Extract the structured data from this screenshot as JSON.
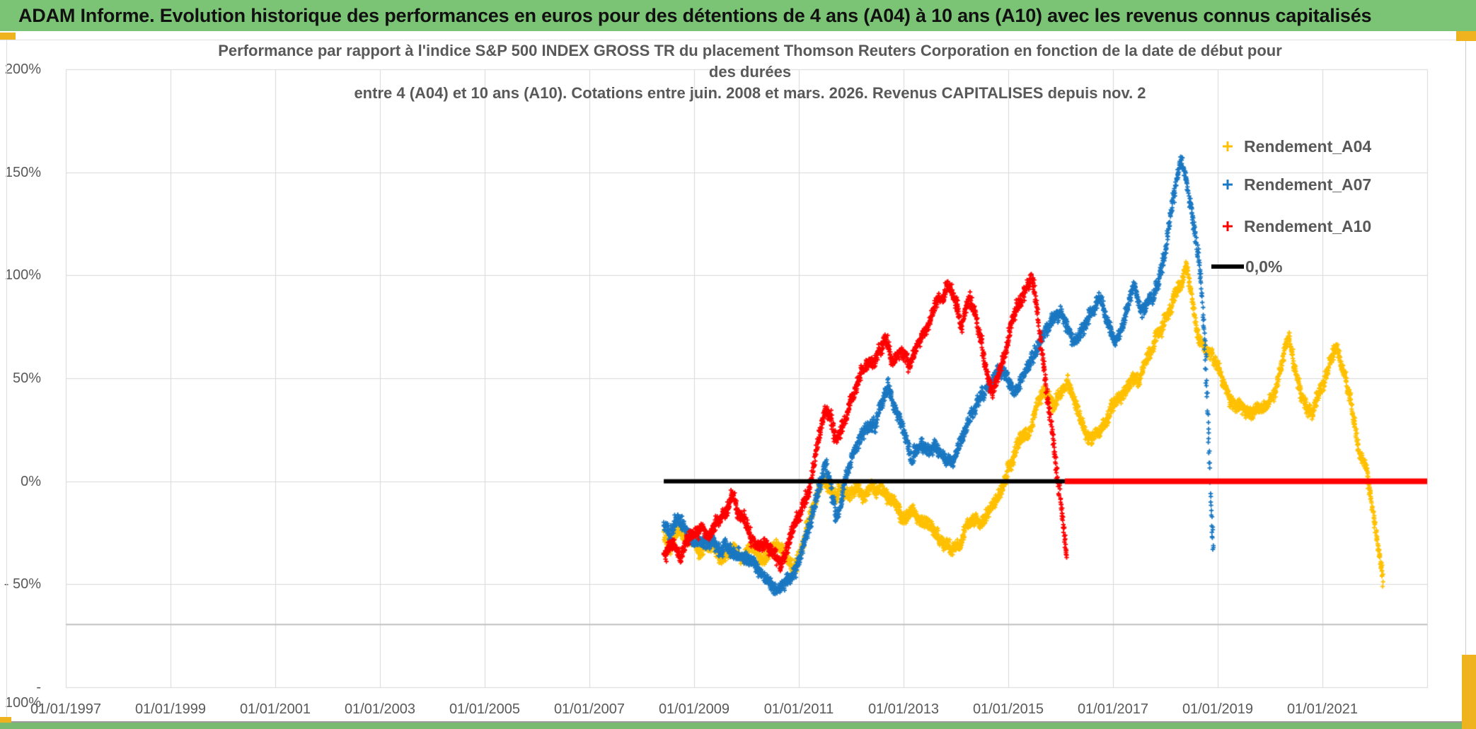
{
  "page": {
    "header_title": "ADAM Informe. Evolution historique des performances en euros pour des détentions de 4 ans (A04) à 10 ans (A10) avec les revenus connus capitalisés"
  },
  "chart": {
    "title_lines": [
      "Performance par rapport à l'indice S&P 500 INDEX GROSS TR  du placement Thomson Reuters Corporation en fonction de la date de début pour",
      "des durées",
      "entre 4 (A04) et 10 ans (A10). Cotations entre juin. 2008 et mars. 2026. Revenus CAPITALISES depuis nov. 2"
    ],
    "legend": [
      {
        "label": "Rendement_A04",
        "color": "#FFC000",
        "marker": "plus"
      },
      {
        "label": "Rendement_A07",
        "color": "#1B78C2",
        "marker": "plus"
      },
      {
        "label": "Rendement_A10",
        "color": "#FF0000",
        "marker": "plus"
      },
      {
        "label": "0,0%",
        "color": "#000000",
        "marker": "line"
      }
    ]
  },
  "chart_data": {
    "type": "scatter",
    "title": "Performance par rapport à l'indice S&P 500 INDEX GROSS TR du placement Thomson Reuters Corporation",
    "x_axis": {
      "min_year": 1997,
      "max_year": 2023,
      "tick_years": [
        1997,
        1999,
        2001,
        2003,
        2005,
        2007,
        2009,
        2011,
        2013,
        2015,
        2017,
        2019,
        2021
      ],
      "tick_labels": [
        "01/01/1997",
        "01/01/1999",
        "01/01/2001",
        "01/01/2003",
        "01/01/2005",
        "01/01/2007",
        "01/01/2009",
        "01/01/2011",
        "01/01/2013",
        "01/01/2015",
        "01/01/2017",
        "01/01/2019",
        "01/01/2021"
      ]
    },
    "y_axis": {
      "unit": "%",
      "min": -100,
      "max": 200,
      "grid_step": 50,
      "tick_labels": [
        "200%",
        "150%",
        "100%",
        "50%",
        "0%",
        "- 50%",
        "- 100%"
      ],
      "tick_values": [
        200,
        150,
        100,
        50,
        0,
        -50,
        -100
      ]
    },
    "grid": {
      "color": "#d9d9d9",
      "extra_hline": {
        "value": -69.5,
        "color": "#bfbfbf",
        "width": 2
      }
    },
    "series": [
      {
        "name": "Rendement_A04",
        "color": "#FFC000",
        "marker": "plus",
        "spread": 3.4,
        "seed": 101,
        "anchors": [
          [
            2008.42,
            -24
          ],
          [
            2008.55,
            -30
          ],
          [
            2008.7,
            -20
          ],
          [
            2008.85,
            -27
          ],
          [
            2009.0,
            -25
          ],
          [
            2009.15,
            -33
          ],
          [
            2009.35,
            -30
          ],
          [
            2009.55,
            -36
          ],
          [
            2009.75,
            -30
          ],
          [
            2009.95,
            -38
          ],
          [
            2010.15,
            -33
          ],
          [
            2010.35,
            -38
          ],
          [
            2010.55,
            -34
          ],
          [
            2010.75,
            -41
          ],
          [
            2010.95,
            -38
          ],
          [
            2011.1,
            -30
          ],
          [
            2011.2,
            -18
          ],
          [
            2011.35,
            -7
          ],
          [
            2011.5,
            -4
          ],
          [
            2011.65,
            -7
          ],
          [
            2011.8,
            -3
          ],
          [
            2011.95,
            -5
          ],
          [
            2012.1,
            -2
          ],
          [
            2012.25,
            -4
          ],
          [
            2012.4,
            0
          ],
          [
            2012.55,
            -2
          ],
          [
            2012.7,
            -5
          ],
          [
            2012.85,
            -9
          ],
          [
            2013.0,
            -15
          ],
          [
            2013.15,
            -11
          ],
          [
            2013.3,
            -16
          ],
          [
            2013.5,
            -22
          ],
          [
            2013.7,
            -28
          ],
          [
            2013.9,
            -34
          ],
          [
            2014.05,
            -28
          ],
          [
            2014.2,
            -20
          ],
          [
            2014.35,
            -16
          ],
          [
            2014.5,
            -19
          ],
          [
            2014.65,
            -12
          ],
          [
            2014.8,
            -5
          ],
          [
            2014.95,
            5
          ],
          [
            2015.1,
            14
          ],
          [
            2015.25,
            22
          ],
          [
            2015.4,
            28
          ],
          [
            2015.55,
            38
          ],
          [
            2015.7,
            44
          ],
          [
            2015.85,
            36
          ],
          [
            2016.0,
            42
          ],
          [
            2016.15,
            48
          ],
          [
            2016.3,
            35
          ],
          [
            2016.45,
            25
          ],
          [
            2016.6,
            20
          ],
          [
            2016.75,
            28
          ],
          [
            2016.9,
            35
          ],
          [
            2017.05,
            42
          ],
          [
            2017.2,
            47
          ],
          [
            2017.35,
            52
          ],
          [
            2017.5,
            48
          ],
          [
            2017.65,
            58
          ],
          [
            2017.8,
            65
          ],
          [
            2017.95,
            72
          ],
          [
            2018.1,
            82
          ],
          [
            2018.25,
            92
          ],
          [
            2018.4,
            100
          ],
          [
            2018.5,
            88
          ],
          [
            2018.6,
            70
          ],
          [
            2018.75,
            62
          ],
          [
            2018.9,
            56
          ],
          [
            2019.05,
            48
          ],
          [
            2019.2,
            40
          ],
          [
            2019.35,
            33
          ],
          [
            2019.5,
            38
          ],
          [
            2019.65,
            30
          ],
          [
            2019.8,
            36
          ],
          [
            2019.95,
            40
          ],
          [
            2020.1,
            46
          ],
          [
            2020.25,
            58
          ],
          [
            2020.35,
            66
          ],
          [
            2020.5,
            48
          ],
          [
            2020.65,
            35
          ],
          [
            2020.8,
            30
          ],
          [
            2020.95,
            40
          ],
          [
            2021.1,
            52
          ],
          [
            2021.25,
            64
          ],
          [
            2021.4,
            52
          ],
          [
            2021.55,
            38
          ],
          [
            2021.7,
            20
          ],
          [
            2021.85,
            5
          ],
          [
            2021.95,
            -10
          ],
          [
            2022.05,
            -25
          ],
          [
            2022.16,
            -44
          ]
        ]
      },
      {
        "name": "Rendement_A07",
        "color": "#1B78C2",
        "marker": "plus",
        "spread": 3.4,
        "seed": 202,
        "anchors": [
          [
            2008.42,
            -20
          ],
          [
            2008.55,
            -27
          ],
          [
            2008.7,
            -17
          ],
          [
            2008.85,
            -25
          ],
          [
            2009.0,
            -32
          ],
          [
            2009.2,
            -28
          ],
          [
            2009.4,
            -35
          ],
          [
            2009.6,
            -32
          ],
          [
            2009.8,
            -36
          ],
          [
            2010.0,
            -38
          ],
          [
            2010.2,
            -42
          ],
          [
            2010.4,
            -45
          ],
          [
            2010.6,
            -48
          ],
          [
            2010.75,
            -45
          ],
          [
            2010.9,
            -40
          ],
          [
            2011.05,
            -32
          ],
          [
            2011.2,
            -18
          ],
          [
            2011.35,
            -2
          ],
          [
            2011.5,
            12
          ],
          [
            2011.6,
            4
          ],
          [
            2011.7,
            -12
          ],
          [
            2011.8,
            -8
          ],
          [
            2011.9,
            4
          ],
          [
            2012.0,
            12
          ],
          [
            2012.15,
            18
          ],
          [
            2012.3,
            24
          ],
          [
            2012.45,
            28
          ],
          [
            2012.6,
            38
          ],
          [
            2012.7,
            45
          ],
          [
            2012.85,
            35
          ],
          [
            2013.0,
            25
          ],
          [
            2013.15,
            13
          ],
          [
            2013.3,
            20
          ],
          [
            2013.45,
            15
          ],
          [
            2013.6,
            18
          ],
          [
            2013.75,
            10
          ],
          [
            2013.9,
            6
          ],
          [
            2014.05,
            15
          ],
          [
            2014.2,
            25
          ],
          [
            2014.35,
            32
          ],
          [
            2014.5,
            40
          ],
          [
            2014.65,
            48
          ],
          [
            2014.8,
            54
          ],
          [
            2014.95,
            50
          ],
          [
            2015.1,
            44
          ],
          [
            2015.25,
            50
          ],
          [
            2015.4,
            55
          ],
          [
            2015.55,
            62
          ],
          [
            2015.7,
            70
          ],
          [
            2015.85,
            76
          ],
          [
            2016.0,
            80
          ],
          [
            2016.15,
            72
          ],
          [
            2016.3,
            66
          ],
          [
            2016.45,
            72
          ],
          [
            2016.6,
            80
          ],
          [
            2016.75,
            88
          ],
          [
            2016.9,
            75
          ],
          [
            2017.05,
            65
          ],
          [
            2017.2,
            72
          ],
          [
            2017.4,
            92
          ],
          [
            2017.55,
            80
          ],
          [
            2017.75,
            88
          ],
          [
            2017.9,
            96
          ],
          [
            2018.0,
            108
          ],
          [
            2018.1,
            125
          ],
          [
            2018.2,
            142
          ],
          [
            2018.3,
            160
          ],
          [
            2018.4,
            150
          ],
          [
            2018.5,
            132
          ],
          [
            2018.6,
            118
          ],
          [
            2018.68,
            102
          ],
          [
            2018.75,
            70
          ],
          [
            2018.82,
            30
          ],
          [
            2018.87,
            -5
          ],
          [
            2018.92,
            -32
          ]
        ]
      },
      {
        "name": "Rendement_A10",
        "color": "#FF0000",
        "marker": "plus",
        "spread": 3.4,
        "seed": 303,
        "anchors": [
          [
            2008.42,
            -36
          ],
          [
            2008.55,
            -30
          ],
          [
            2008.7,
            -37
          ],
          [
            2008.85,
            -33
          ],
          [
            2009.0,
            -28
          ],
          [
            2009.15,
            -22
          ],
          [
            2009.3,
            -27
          ],
          [
            2009.45,
            -24
          ],
          [
            2009.6,
            -18
          ],
          [
            2009.75,
            -10
          ],
          [
            2009.9,
            -16
          ],
          [
            2010.05,
            -24
          ],
          [
            2010.2,
            -28
          ],
          [
            2010.35,
            -25
          ],
          [
            2010.5,
            -30
          ],
          [
            2010.65,
            -36
          ],
          [
            2010.8,
            -30
          ],
          [
            2010.95,
            -18
          ],
          [
            2011.1,
            -14
          ],
          [
            2011.2,
            -10
          ],
          [
            2011.3,
            5
          ],
          [
            2011.4,
            22
          ],
          [
            2011.5,
            33
          ],
          [
            2011.6,
            28
          ],
          [
            2011.7,
            15
          ],
          [
            2011.8,
            20
          ],
          [
            2011.9,
            28
          ],
          [
            2012.0,
            35
          ],
          [
            2012.1,
            42
          ],
          [
            2012.2,
            50
          ],
          [
            2012.35,
            55
          ],
          [
            2012.5,
            62
          ],
          [
            2012.65,
            70
          ],
          [
            2012.8,
            58
          ],
          [
            2012.95,
            63
          ],
          [
            2013.1,
            56
          ],
          [
            2013.25,
            65
          ],
          [
            2013.4,
            72
          ],
          [
            2013.55,
            80
          ],
          [
            2013.7,
            88
          ],
          [
            2013.85,
            97
          ],
          [
            2014.0,
            88
          ],
          [
            2014.1,
            75
          ],
          [
            2014.25,
            88
          ],
          [
            2014.4,
            80
          ],
          [
            2014.55,
            60
          ],
          [
            2014.7,
            48
          ],
          [
            2014.85,
            60
          ],
          [
            2015.0,
            72
          ],
          [
            2015.15,
            85
          ],
          [
            2015.3,
            95
          ],
          [
            2015.45,
            103
          ],
          [
            2015.55,
            88
          ],
          [
            2015.65,
            65
          ],
          [
            2015.75,
            45
          ],
          [
            2015.85,
            25
          ],
          [
            2015.95,
            5
          ],
          [
            2016.05,
            -18
          ],
          [
            2016.12,
            -34
          ]
        ]
      }
    ],
    "zero_lines": [
      {
        "label": "0,0%",
        "color": "#000000",
        "value": 0,
        "from_year": 2008.42,
        "to_year": 2016.08,
        "width": 6
      },
      {
        "label": "",
        "color": "#FF0000",
        "value": 0,
        "from_year": 2016.08,
        "to_year": 2023.0,
        "width": 8
      }
    ]
  }
}
